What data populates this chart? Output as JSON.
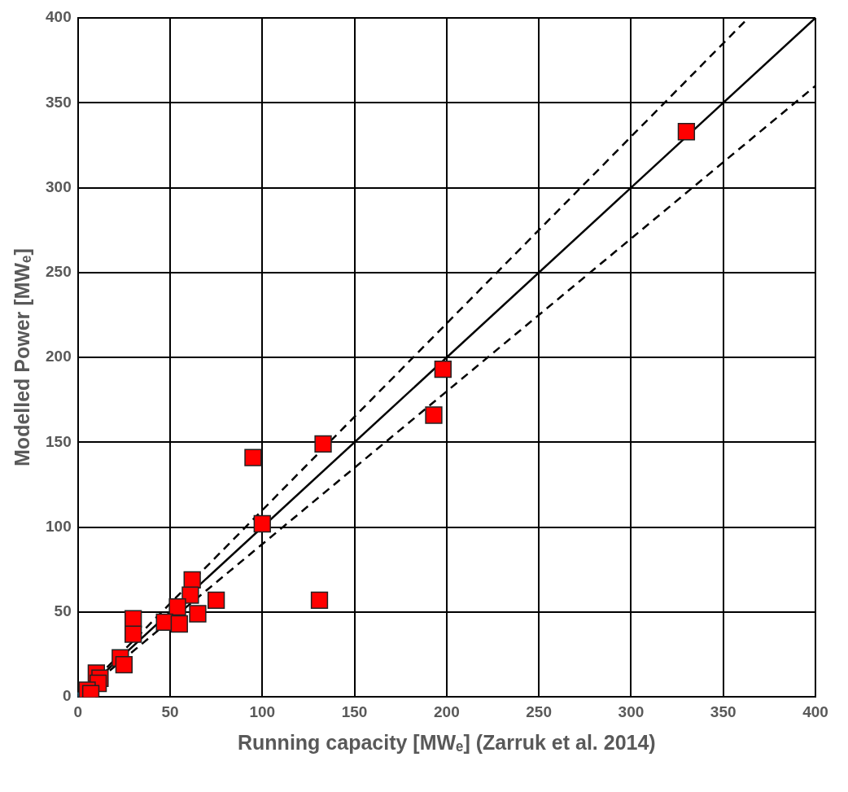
{
  "chart_data": {
    "type": "scatter",
    "xlabel": "Running capacity [MWₑ] (Zarruk et al. 2014)",
    "ylabel": "Modelled Power [MWₑ]",
    "xlim": [
      0,
      400
    ],
    "xticks": [
      0,
      50,
      100,
      150,
      200,
      250,
      300,
      350,
      400
    ],
    "ylim": [
      0,
      400
    ],
    "yticks": [
      0,
      50,
      100,
      150,
      200,
      250,
      300,
      350,
      400
    ],
    "grid": true,
    "legend": false,
    "series": [
      {
        "type": "line",
        "color": "#000000",
        "marker": "none",
        "line_style": "solid",
        "x": [
          0,
          400
        ],
        "values": [
          0,
          400
        ]
      },
      {
        "type": "line",
        "color": "#000000",
        "marker": "none",
        "line_style": "dashed",
        "x": [
          0,
          363.6
        ],
        "values": [
          0,
          400
        ]
      },
      {
        "type": "line",
        "color": "#000000",
        "marker": "none",
        "line_style": "dashed",
        "x": [
          0,
          400
        ],
        "values": [
          0,
          360
        ]
      },
      {
        "type": "scatter",
        "color": "#ff0000",
        "marker": "square",
        "x": [
          330,
          198,
          193,
          133,
          95,
          100,
          131,
          62,
          61,
          75,
          54,
          65,
          30,
          47,
          55,
          30,
          23,
          25,
          10,
          12,
          11,
          5,
          7
        ],
        "values": [
          333,
          193,
          166,
          149,
          141,
          102,
          57,
          69,
          60,
          57,
          53,
          49,
          46,
          44,
          43,
          37,
          23,
          19,
          14,
          11,
          8,
          4,
          2
        ]
      },
      {
        "type": "scatter",
        "color": "#1f9bd1",
        "marker": "circle",
        "x": [
          0
        ],
        "values": [
          0
        ]
      }
    ]
  }
}
